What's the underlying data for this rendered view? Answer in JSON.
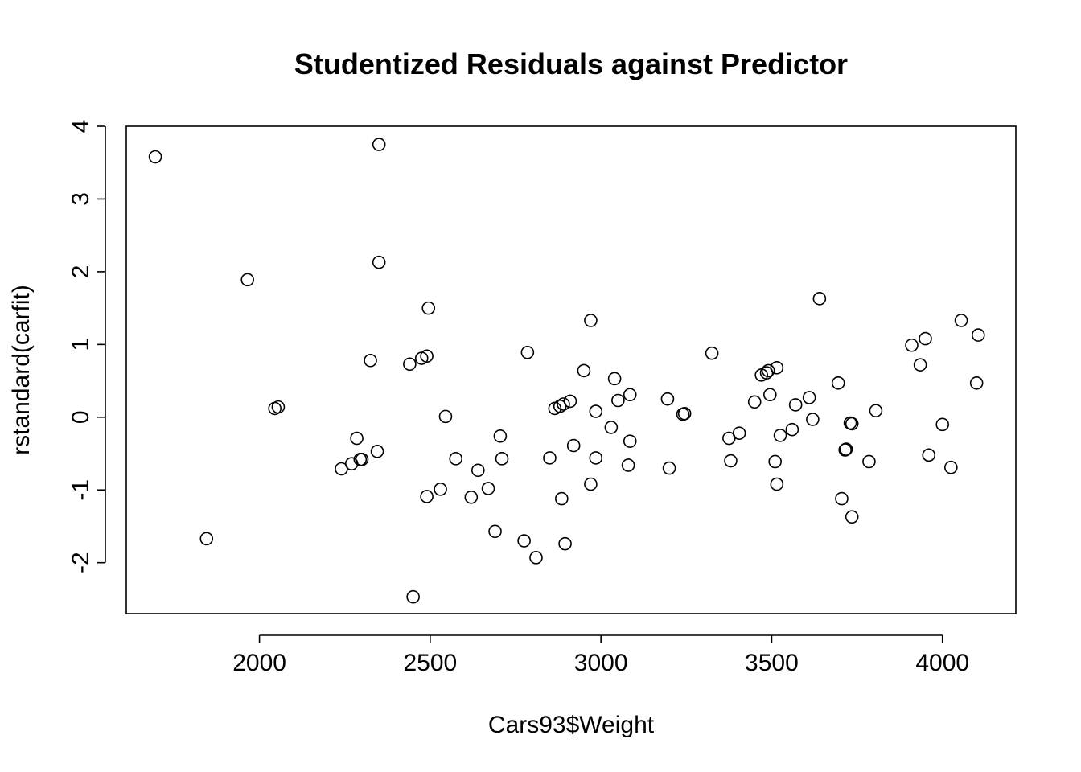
{
  "chart_data": {
    "type": "scatter",
    "title": "Studentized Residuals against Predictor",
    "xlabel": "Cars93$Weight",
    "ylabel": "rstandard(carfit)",
    "xlim": [
      1610,
      4215
    ],
    "ylim": [
      -2.7,
      4.0
    ],
    "xticks": [
      2000,
      2500,
      3000,
      3500,
      4000
    ],
    "yticks": [
      -2,
      -1,
      0,
      1,
      2,
      3,
      4
    ],
    "xtick_labels": [
      "2000",
      "2500",
      "3000",
      "3500",
      "4000"
    ],
    "ytick_labels": [
      "-2",
      "-1",
      "0",
      "1",
      "2",
      "3",
      "4"
    ],
    "grid": false,
    "marker": "open-circle",
    "points": [
      {
        "x": 1695,
        "y": 3.58
      },
      {
        "x": 1845,
        "y": -1.67
      },
      {
        "x": 1965,
        "y": 1.89
      },
      {
        "x": 2045,
        "y": 0.12
      },
      {
        "x": 2055,
        "y": 0.14
      },
      {
        "x": 2240,
        "y": -0.71
      },
      {
        "x": 2270,
        "y": -0.64
      },
      {
        "x": 2285,
        "y": -0.29
      },
      {
        "x": 2295,
        "y": -0.58
      },
      {
        "x": 2300,
        "y": -0.58
      },
      {
        "x": 2325,
        "y": 0.78
      },
      {
        "x": 2345,
        "y": -0.47
      },
      {
        "x": 2350,
        "y": 3.75
      },
      {
        "x": 2350,
        "y": 2.13
      },
      {
        "x": 2440,
        "y": 0.73
      },
      {
        "x": 2450,
        "y": -2.47
      },
      {
        "x": 2475,
        "y": 0.81
      },
      {
        "x": 2490,
        "y": 0.84
      },
      {
        "x": 2490,
        "y": -1.09
      },
      {
        "x": 2495,
        "y": 1.5
      },
      {
        "x": 2530,
        "y": -0.99
      },
      {
        "x": 2545,
        "y": 0.01
      },
      {
        "x": 2575,
        "y": -0.57
      },
      {
        "x": 2620,
        "y": -1.1
      },
      {
        "x": 2640,
        "y": -0.73
      },
      {
        "x": 2670,
        "y": -0.98
      },
      {
        "x": 2690,
        "y": -1.57
      },
      {
        "x": 2705,
        "y": -0.26
      },
      {
        "x": 2710,
        "y": -0.57
      },
      {
        "x": 2775,
        "y": -1.7
      },
      {
        "x": 2785,
        "y": 0.89
      },
      {
        "x": 2810,
        "y": -1.93
      },
      {
        "x": 2850,
        "y": -0.56
      },
      {
        "x": 2865,
        "y": 0.12
      },
      {
        "x": 2880,
        "y": 0.15
      },
      {
        "x": 2885,
        "y": -1.12
      },
      {
        "x": 2890,
        "y": 0.18
      },
      {
        "x": 2895,
        "y": -1.74
      },
      {
        "x": 2910,
        "y": 0.22
      },
      {
        "x": 2920,
        "y": -0.39
      },
      {
        "x": 2950,
        "y": 0.64
      },
      {
        "x": 2970,
        "y": 1.33
      },
      {
        "x": 2970,
        "y": -0.92
      },
      {
        "x": 2985,
        "y": 0.08
      },
      {
        "x": 2985,
        "y": -0.56
      },
      {
        "x": 3030,
        "y": -0.14
      },
      {
        "x": 3040,
        "y": 0.53
      },
      {
        "x": 3050,
        "y": 0.23
      },
      {
        "x": 3080,
        "y": -0.66
      },
      {
        "x": 3085,
        "y": 0.31
      },
      {
        "x": 3085,
        "y": -0.33
      },
      {
        "x": 3195,
        "y": 0.25
      },
      {
        "x": 3200,
        "y": -0.7
      },
      {
        "x": 3240,
        "y": 0.04
      },
      {
        "x": 3245,
        "y": 0.05
      },
      {
        "x": 3325,
        "y": 0.88
      },
      {
        "x": 3375,
        "y": -0.29
      },
      {
        "x": 3380,
        "y": -0.6
      },
      {
        "x": 3405,
        "y": -0.22
      },
      {
        "x": 3450,
        "y": 0.21
      },
      {
        "x": 3470,
        "y": 0.58
      },
      {
        "x": 3485,
        "y": 0.61
      },
      {
        "x": 3490,
        "y": 0.64
      },
      {
        "x": 3495,
        "y": 0.31
      },
      {
        "x": 3510,
        "y": -0.61
      },
      {
        "x": 3515,
        "y": -0.92
      },
      {
        "x": 3515,
        "y": 0.68
      },
      {
        "x": 3525,
        "y": -0.25
      },
      {
        "x": 3560,
        "y": -0.17
      },
      {
        "x": 3570,
        "y": 0.17
      },
      {
        "x": 3610,
        "y": 0.27
      },
      {
        "x": 3620,
        "y": -0.03
      },
      {
        "x": 3640,
        "y": 1.63
      },
      {
        "x": 3695,
        "y": 0.47
      },
      {
        "x": 3705,
        "y": -1.12
      },
      {
        "x": 3715,
        "y": -0.45
      },
      {
        "x": 3718,
        "y": -0.44
      },
      {
        "x": 3730,
        "y": -0.08
      },
      {
        "x": 3735,
        "y": -0.09
      },
      {
        "x": 3735,
        "y": -1.37
      },
      {
        "x": 3785,
        "y": -0.61
      },
      {
        "x": 3805,
        "y": 0.09
      },
      {
        "x": 3910,
        "y": 0.99
      },
      {
        "x": 3935,
        "y": 0.72
      },
      {
        "x": 3950,
        "y": 1.08
      },
      {
        "x": 3960,
        "y": -0.52
      },
      {
        "x": 4000,
        "y": -0.1
      },
      {
        "x": 4025,
        "y": -0.69
      },
      {
        "x": 4055,
        "y": 1.33
      },
      {
        "x": 4100,
        "y": 0.47
      },
      {
        "x": 4105,
        "y": 1.13
      }
    ]
  }
}
